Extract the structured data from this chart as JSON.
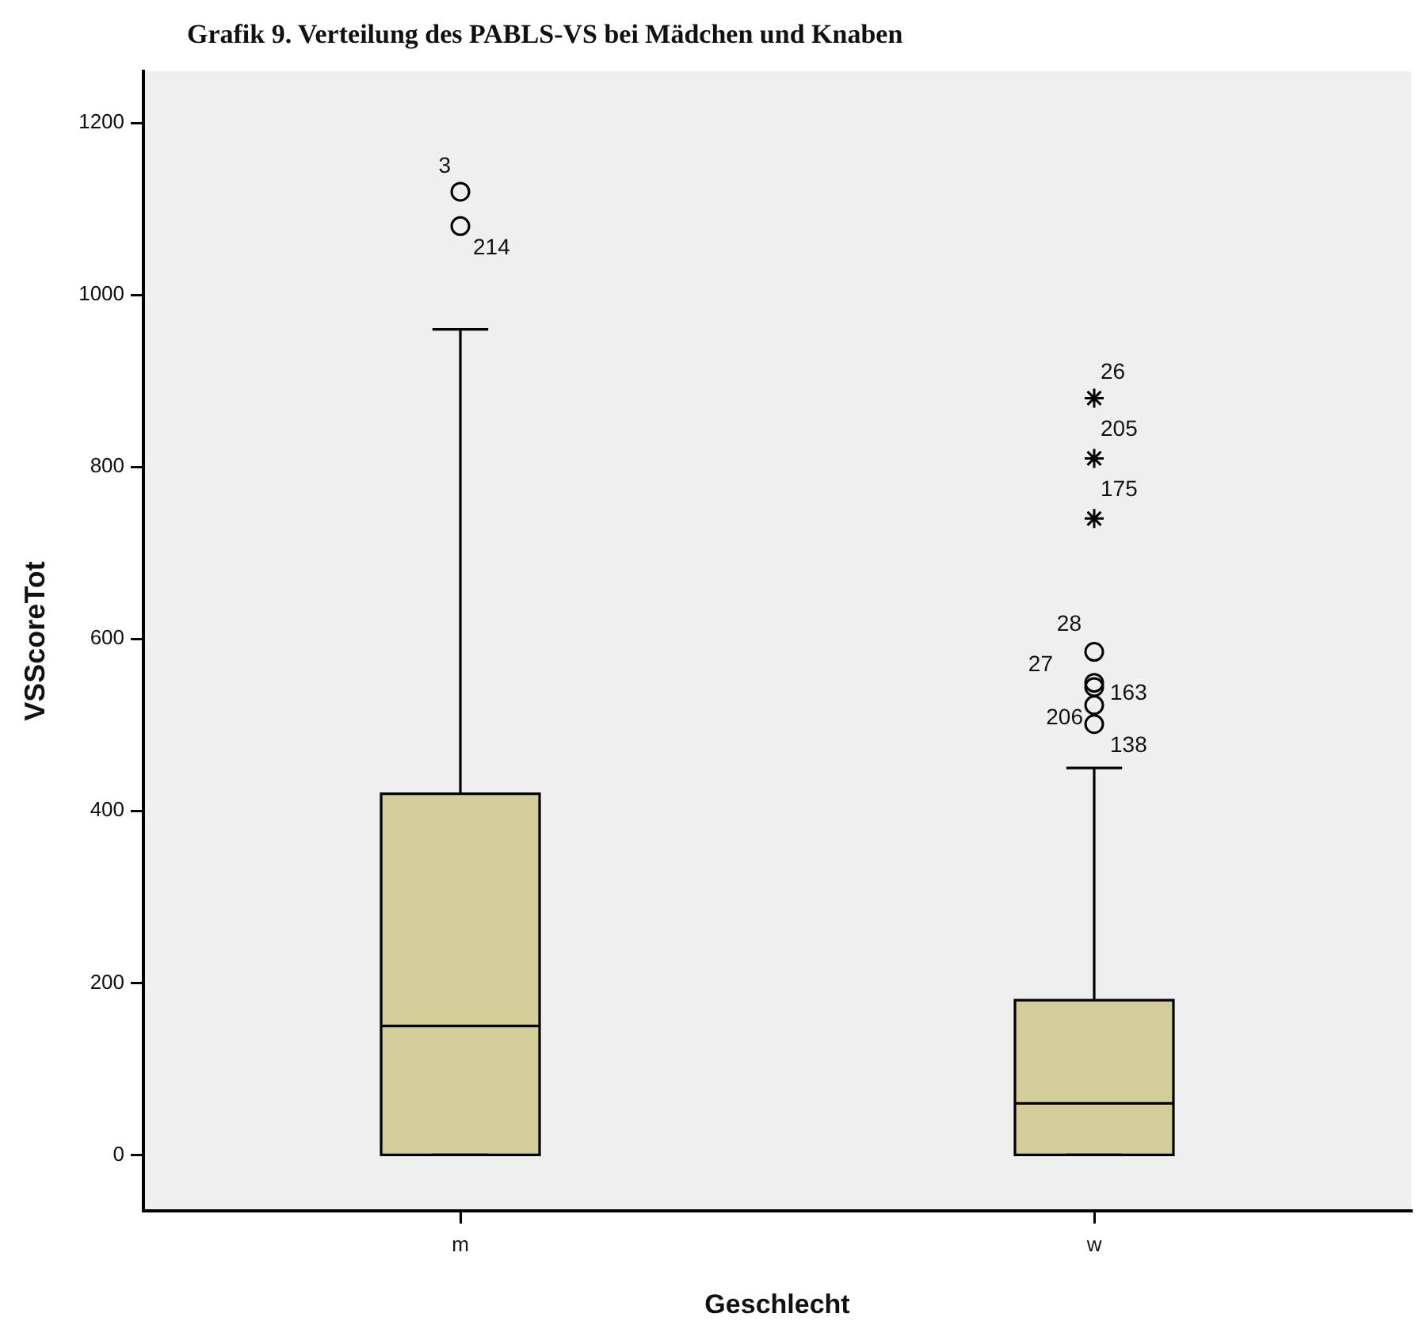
{
  "chart_data": {
    "type": "box",
    "title": "Grafik 9. Verteilung des PABLS-VS bei Mädchen und Knaben",
    "xlabel": "Geschlecht",
    "ylabel": "VSScoreTot",
    "categories": [
      "m",
      "w"
    ],
    "ylim": [
      -65,
      1260
    ],
    "yticks": [
      0,
      200,
      400,
      600,
      800,
      1000,
      1200
    ],
    "grid": false,
    "legend": false,
    "series": [
      {
        "type": "box",
        "color": "#d3ce99",
        "boxes": [
          {
            "low": 0,
            "q1": 0,
            "median": 150,
            "q3": 420,
            "high": 960,
            "outliers": [
              1120,
              1080
            ]
          },
          {
            "low": 0,
            "q1": 0,
            "median": 60,
            "q3": 180,
            "high": 450,
            "outliers": [
              585,
              549,
              544,
              523,
              501
            ]
          }
        ]
      },
      {
        "type": "scatter",
        "marker": "cross",
        "color": "#000000",
        "x": [
          "w",
          "w",
          "w"
        ],
        "values": [
          880,
          810,
          740
        ]
      }
    ],
    "annotations": [
      "3",
      "214",
      "28",
      "27",
      "163",
      "206",
      "138",
      "26",
      "205",
      "175"
    ]
  }
}
